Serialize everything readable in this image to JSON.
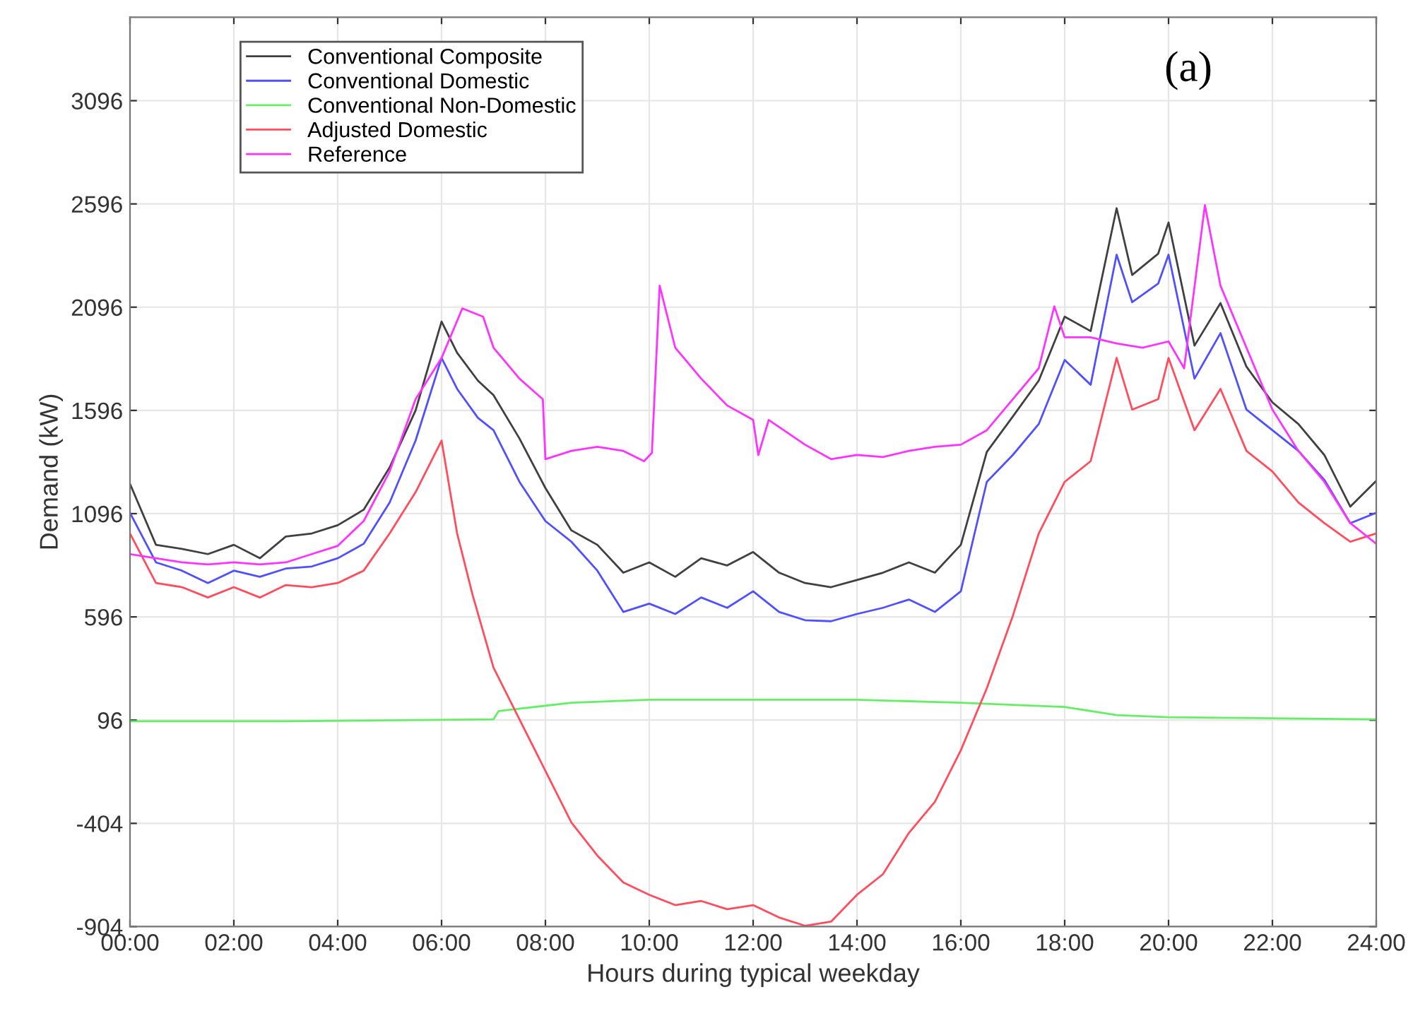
{
  "chart_data": {
    "type": "line",
    "xlabel": "Hours during typical weekday",
    "ylabel": "Demand (kW)",
    "annotations": [
      "(a)"
    ],
    "xlim": [
      0,
      24
    ],
    "xticks": [
      {
        "value": 0,
        "label": "00:00"
      },
      {
        "value": 2,
        "label": "02:00"
      },
      {
        "value": 4,
        "label": "04:00"
      },
      {
        "value": 6,
        "label": "06:00"
      },
      {
        "value": 8,
        "label": "08:00"
      },
      {
        "value": 10,
        "label": "10:00"
      },
      {
        "value": 12,
        "label": "12:00"
      },
      {
        "value": 14,
        "label": "14:00"
      },
      {
        "value": 16,
        "label": "16:00"
      },
      {
        "value": 18,
        "label": "18:00"
      },
      {
        "value": 20,
        "label": "20:00"
      },
      {
        "value": 22,
        "label": "22:00"
      },
      {
        "value": 24,
        "label": "24:00"
      }
    ],
    "ylim": [
      -904,
      3500
    ],
    "yticks": [
      -904,
      -404,
      96,
      596,
      1096,
      1596,
      2096,
      2596,
      3096
    ],
    "grid": true,
    "legend": "top left",
    "line_style": "solid",
    "marker": "none",
    "series": [
      {
        "name": "Conventional Composite",
        "color": "#404040",
        "x": [
          0,
          0.5,
          1,
          1.5,
          2,
          2.5,
          3,
          3.5,
          4,
          4.5,
          5,
          5.5,
          6,
          6.3,
          6.7,
          7,
          7.5,
          8,
          8.5,
          9,
          9.5,
          10,
          10.5,
          11,
          11.5,
          12,
          12.5,
          13,
          13.5,
          14,
          14.5,
          15,
          15.5,
          16,
          16.5,
          17,
          17.5,
          18,
          18.5,
          19,
          19.3,
          19.8,
          20,
          20.5,
          21,
          21.5,
          22,
          22.5,
          23,
          23.5,
          24
        ],
        "values": [
          1240,
          945,
          925,
          900,
          945,
          880,
          985,
          1000,
          1040,
          1115,
          1320,
          1596,
          2026,
          1875,
          1740,
          1670,
          1460,
          1220,
          1015,
          945,
          810,
          860,
          790,
          880,
          845,
          910,
          810,
          760,
          740,
          775,
          810,
          860,
          810,
          945,
          1395,
          1566,
          1740,
          2050,
          1980,
          2575,
          2252,
          2355,
          2506,
          1910,
          2116,
          1808,
          1635,
          1530,
          1380,
          1130,
          1255
        ]
      },
      {
        "name": "Conventional Domestic",
        "color": "#5050ff",
        "x": [
          0,
          0.5,
          1,
          1.5,
          2,
          2.5,
          3,
          3.5,
          4,
          4.5,
          5,
          5.5,
          6,
          6.3,
          6.7,
          7,
          7.5,
          8,
          8.5,
          9,
          9.5,
          10,
          10.5,
          11,
          11.5,
          12,
          12.5,
          13,
          13.5,
          14,
          14.5,
          15,
          15.5,
          16,
          16.5,
          17,
          17.5,
          18,
          18.5,
          19,
          19.3,
          19.8,
          20,
          20.5,
          21,
          21.5,
          22,
          22.5,
          23,
          23.5,
          24
        ],
        "values": [
          1100,
          860,
          820,
          760,
          820,
          790,
          830,
          840,
          880,
          950,
          1150,
          1450,
          1850,
          1700,
          1560,
          1500,
          1250,
          1060,
          960,
          820,
          620,
          660,
          610,
          690,
          640,
          720,
          620,
          580,
          575,
          610,
          640,
          680,
          620,
          720,
          1250,
          1380,
          1530,
          1840,
          1720,
          2350,
          2120,
          2210,
          2350,
          1750,
          1970,
          1600,
          1500,
          1400,
          1260,
          1050,
          1100
        ]
      },
      {
        "name": "Conventional Non-Domestic",
        "color": "#66ee66",
        "x": [
          0,
          3,
          7,
          7.1,
          8.5,
          10,
          14,
          16,
          18,
          19,
          20,
          24
        ],
        "values": [
          90,
          90,
          100,
          140,
          180,
          195,
          195,
          180,
          160,
          120,
          110,
          100
        ]
      },
      {
        "name": "Adjusted Domestic",
        "color": "#ff4d5e",
        "x": [
          0,
          0.5,
          1,
          1.5,
          2,
          2.5,
          3,
          3.5,
          4,
          4.5,
          5,
          5.5,
          6,
          6.3,
          6.6,
          7,
          7.5,
          8,
          8.5,
          9,
          9.5,
          10,
          10.5,
          11,
          11.5,
          12,
          12.5,
          13,
          13.5,
          14,
          14.5,
          15,
          15.5,
          16,
          16.5,
          17,
          17.5,
          18,
          18.5,
          19,
          19.3,
          19.8,
          20,
          20.5,
          21,
          21.5,
          22,
          22.5,
          23,
          23.5,
          24
        ],
        "values": [
          1000,
          760,
          740,
          690,
          740,
          690,
          750,
          740,
          760,
          820,
          1000,
          1200,
          1450,
          1000,
          700,
          350,
          100,
          -150,
          -400,
          -560,
          -690,
          -750,
          -800,
          -780,
          -820,
          -800,
          -860,
          -900,
          -880,
          -750,
          -650,
          -450,
          -300,
          -50,
          250,
          600,
          1000,
          1250,
          1350,
          1850,
          1600,
          1650,
          1850,
          1500,
          1700,
          1400,
          1300,
          1150,
          1050,
          960,
          1000
        ]
      },
      {
        "name": "Reference",
        "color": "#ff33ff",
        "x": [
          0,
          0.5,
          1,
          1.5,
          2,
          2.5,
          3,
          3.5,
          4,
          4.5,
          5,
          5.5,
          6,
          6.4,
          6.8,
          7,
          7.5,
          7.95,
          8.0,
          8.5,
          9,
          9.5,
          9.9,
          10.05,
          10.2,
          10.5,
          11,
          11.5,
          12,
          12.1,
          12.3,
          13,
          13.5,
          14,
          14.5,
          15,
          15.5,
          16,
          16.5,
          17,
          17.5,
          17.8,
          18,
          18.5,
          19,
          19.5,
          20,
          20.3,
          20.7,
          21,
          21.5,
          22,
          22.5,
          23,
          23.5,
          24
        ],
        "values": [
          900,
          880,
          860,
          850,
          860,
          850,
          860,
          900,
          940,
          1060,
          1300,
          1650,
          1850,
          2090,
          2050,
          1900,
          1750,
          1650,
          1360,
          1400,
          1420,
          1400,
          1350,
          1390,
          2200,
          1900,
          1750,
          1620,
          1550,
          1380,
          1550,
          1430,
          1360,
          1380,
          1370,
          1400,
          1420,
          1430,
          1500,
          1650,
          1800,
          2100,
          1950,
          1950,
          1920,
          1900,
          1930,
          1800,
          2590,
          2200,
          1900,
          1600,
          1400,
          1250,
          1050,
          950
        ]
      }
    ]
  }
}
